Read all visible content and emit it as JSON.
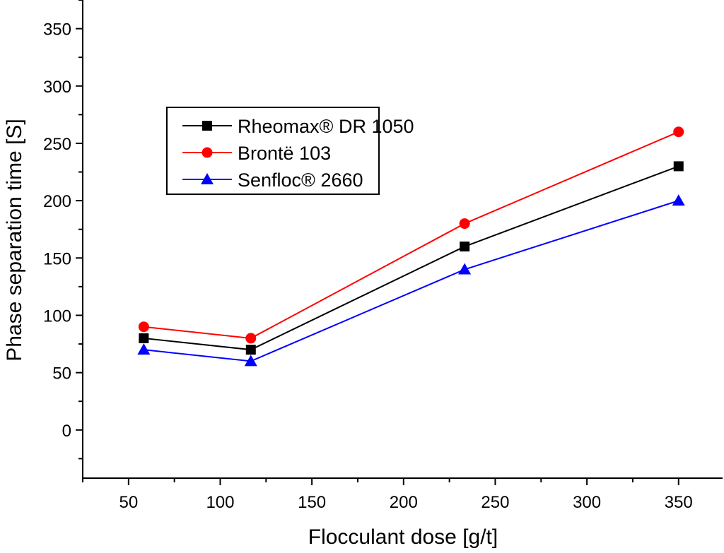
{
  "chart_data": {
    "type": "line",
    "title": "",
    "xlabel": "Flocculant dose [g/t]",
    "ylabel": "Phase separation time [S]",
    "xlim": [
      25,
      374
    ],
    "ylim": [
      -42,
      375
    ],
    "xticks": [
      50,
      100,
      150,
      200,
      250,
      300,
      350
    ],
    "yticks": [
      0,
      50,
      100,
      150,
      200,
      250,
      300,
      350
    ],
    "grid": false,
    "legend_position": "upper-left-inside",
    "x": [
      58.3,
      116.7,
      233.3,
      350
    ],
    "series": [
      {
        "name": "Rheomax® DR 1050",
        "color": "#000000",
        "marker": "square",
        "values": [
          80,
          70,
          160,
          230
        ]
      },
      {
        "name": "Brontë 103",
        "color": "#ff0000",
        "marker": "circle",
        "values": [
          90,
          80,
          180,
          260
        ]
      },
      {
        "name": "Senfloc® 2660",
        "color": "#0000ff",
        "marker": "triangle",
        "values": [
          70,
          60,
          140,
          200
        ]
      }
    ]
  }
}
